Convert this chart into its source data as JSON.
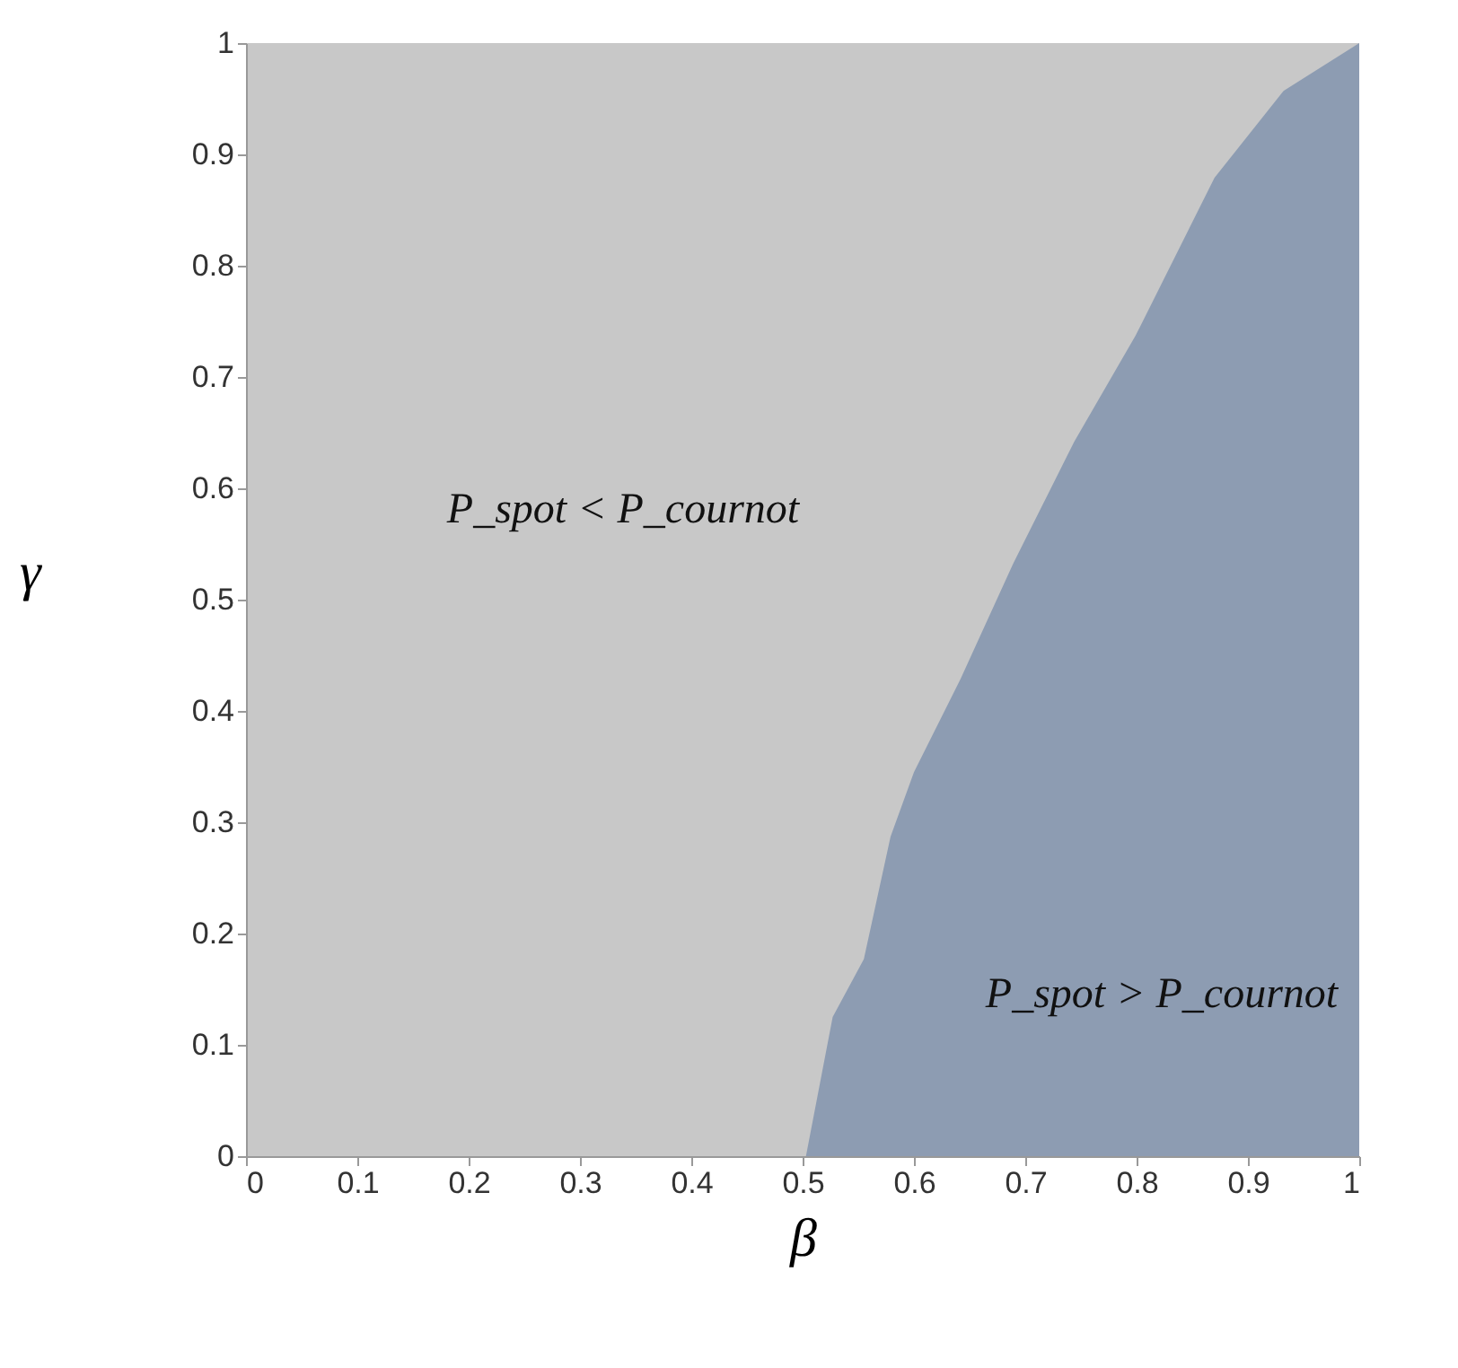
{
  "chart_data": {
    "type": "area",
    "xlabel": "β",
    "ylabel": "γ",
    "xlim": [
      0,
      1
    ],
    "ylim": [
      0,
      1
    ],
    "xticks": [
      0,
      0.1,
      0.2,
      0.3,
      0.4,
      0.5,
      0.6,
      0.7,
      0.8,
      0.9,
      1
    ],
    "yticks": [
      0,
      0.1,
      0.2,
      0.3,
      0.4,
      0.5,
      0.6,
      0.7,
      0.8,
      0.9,
      1
    ],
    "grid": false,
    "series": [
      {
        "color": "#8d9cb2",
        "x": [
          0.503,
          0.527,
          0.555,
          0.579,
          0.6,
          0.642,
          0.689,
          0.744,
          0.799,
          0.87,
          0.932,
          1
        ],
        "values": [
          0,
          0.125,
          0.177,
          0.287,
          0.345,
          0.429,
          0.532,
          0.642,
          0.737,
          0.879,
          0.957,
          1
        ]
      }
    ],
    "annotations": [
      "P_spot < P_cournot",
      "P_spot > P_cournot"
    ]
  }
}
